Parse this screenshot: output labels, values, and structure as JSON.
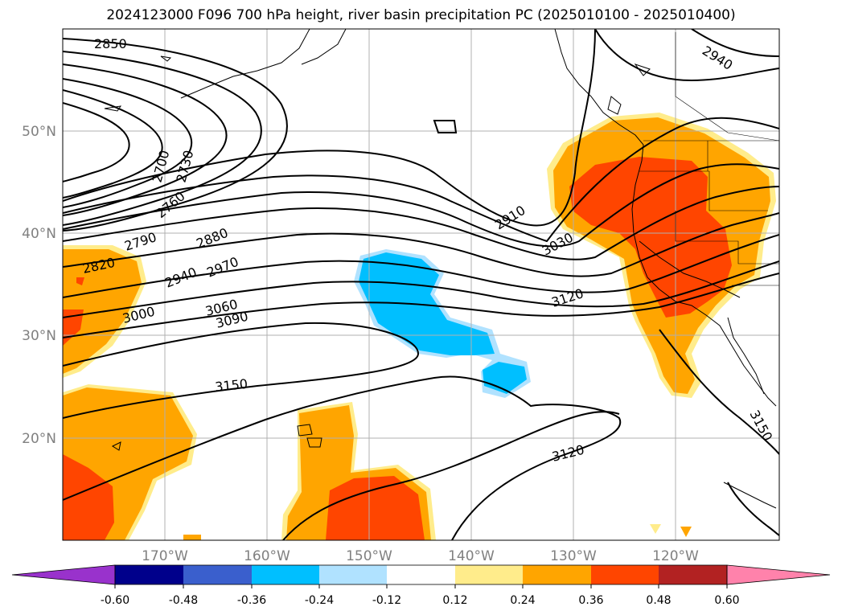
{
  "title": "2024123000 F096 700 hPa height, river basin precipitation PC (2025010100 - 2025010400)",
  "latitude_labels": [
    "50°N",
    "40°N",
    "30°N",
    "20°N"
  ],
  "longitude_labels": [
    "170°W",
    "160°W",
    "150°W",
    "140°W",
    "130°W",
    "120°W"
  ],
  "colorbar": {
    "tick_labels": [
      "-0.60",
      "-0.48",
      "-0.36",
      "-0.24",
      "-0.12",
      "0.12",
      "0.24",
      "0.36",
      "0.48",
      "0.60"
    ],
    "colors": [
      "#9932cc",
      "#00008b",
      "#3a5fcd",
      "#00bfff",
      "#b0e2ff",
      "#ffffff",
      "#ffec8b",
      "#ffa500",
      "#ff4500",
      "#b22222",
      "#ff82ab"
    ]
  },
  "contour_labels": [
    "2850",
    "2700",
    "2730",
    "2760",
    "2790",
    "2820",
    "2880",
    "2940",
    "2970",
    "3000",
    "3060",
    "3090",
    "2910",
    "3030",
    "3120",
    "3150",
    "3120",
    "3150",
    "2940"
  ],
  "colors": {
    "shade_low": "#ffec8b",
    "shade_mid": "#ffa500",
    "shade_high": "#ff4500",
    "shade_neg": "#00bfff",
    "shade_neg_light": "#b0e2ff",
    "grid": "#b0b0b0"
  }
}
